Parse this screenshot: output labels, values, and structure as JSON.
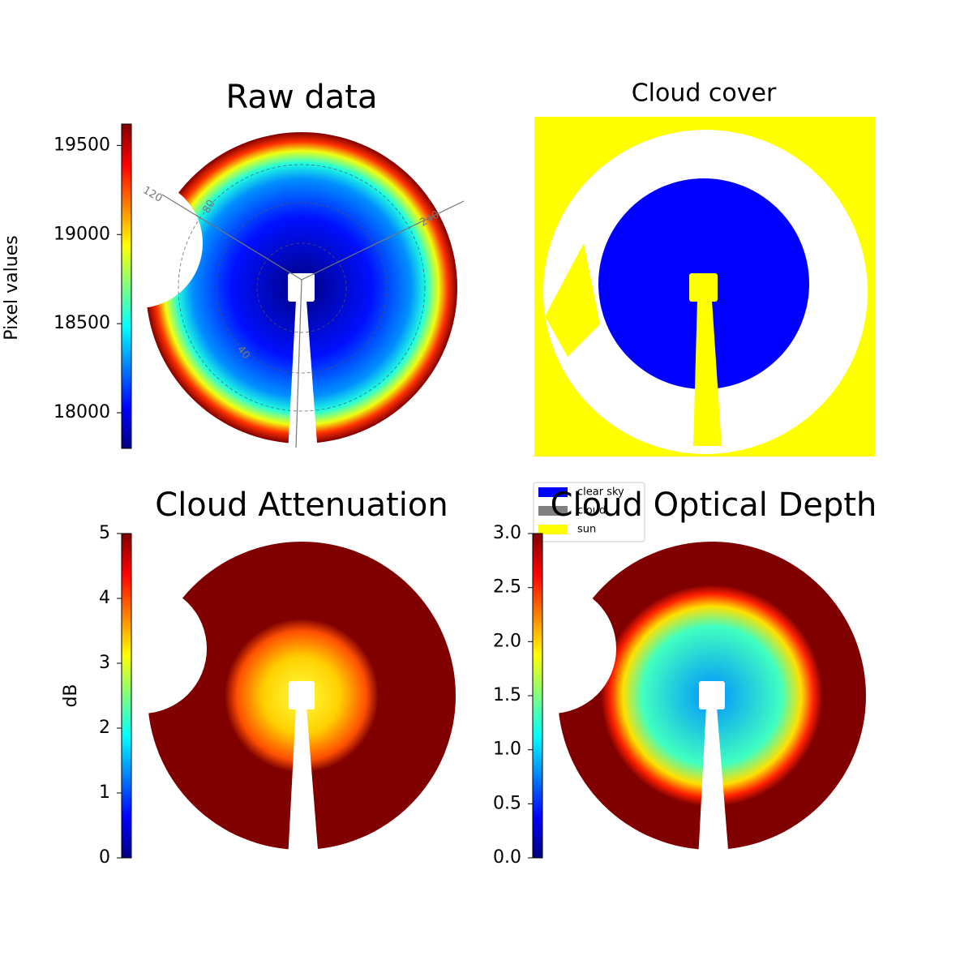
{
  "chart_data": [
    {
      "type": "image",
      "title": "Raw data",
      "colorbar_label": "Pixel values",
      "colormap": "jet",
      "ylim": [
        17800,
        19620
      ],
      "yticks": [
        18000,
        18500,
        19000,
        19500
      ],
      "annotations": [
        "120",
        "80",
        "240",
        "40"
      ]
    },
    {
      "type": "image",
      "title": "Cloud cover",
      "legend": [
        {
          "name": "clear sky",
          "color": "#0000ff"
        },
        {
          "name": "cloud",
          "color": "#808080"
        },
        {
          "name": "sun",
          "color": "#ffff00"
        }
      ]
    },
    {
      "type": "image",
      "title": "Cloud Attenuation",
      "colorbar_label": "dB",
      "colormap": "jet",
      "ylim": [
        0,
        5
      ],
      "yticks": [
        0,
        1,
        2,
        3,
        4,
        5
      ]
    },
    {
      "type": "image",
      "title": "Cloud Optical Depth",
      "colormap": "jet",
      "ylim": [
        0,
        3
      ],
      "yticks": [
        {
          "value": 0,
          "label": "0.0"
        },
        0.5,
        {
          "value": 1,
          "label": "1.0"
        },
        1.5,
        {
          "value": 2,
          "label": "2.0"
        },
        2.5,
        {
          "value": 3,
          "label": "3.0"
        }
      ]
    }
  ]
}
